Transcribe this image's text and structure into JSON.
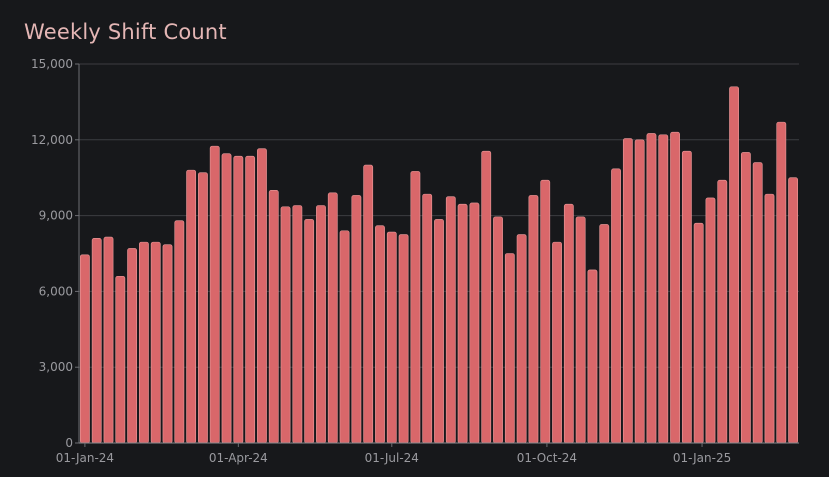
{
  "chart_data": {
    "type": "bar",
    "title": "Weekly Shift Count",
    "xlabel": "",
    "ylabel": "",
    "ylim": [
      0,
      15000
    ],
    "yticks": [
      0,
      3000,
      6000,
      9000,
      12000,
      15000
    ],
    "ytick_labels": [
      "0",
      "3,000",
      "6,000",
      "9,000",
      "12,000",
      "15,000"
    ],
    "xtick_labels": [
      "01-Jan-24",
      "01-Apr-24",
      "01-Jul-24",
      "01-Oct-24",
      "01-Jan-25"
    ],
    "xtick_dates": [
      "2024-01-01",
      "2024-04-01",
      "2024-07-01",
      "2024-10-01",
      "2025-01-01"
    ],
    "grid": true,
    "bar_color": "#d9676a",
    "series": [
      {
        "x": [
          "2024-01-01",
          "2024-01-08",
          "2024-01-15",
          "2024-01-22",
          "2024-01-29",
          "2024-02-05",
          "2024-02-12",
          "2024-02-19",
          "2024-02-26",
          "2024-03-04",
          "2024-03-11",
          "2024-03-18",
          "2024-03-25",
          "2024-04-01",
          "2024-04-08",
          "2024-04-15",
          "2024-04-22",
          "2024-04-29",
          "2024-05-06",
          "2024-05-13",
          "2024-05-20",
          "2024-05-27",
          "2024-06-03",
          "2024-06-10",
          "2024-06-17",
          "2024-06-24",
          "2024-07-01",
          "2024-07-08",
          "2024-07-15",
          "2024-07-22",
          "2024-07-29",
          "2024-08-05",
          "2024-08-12",
          "2024-08-19",
          "2024-08-26",
          "2024-09-02",
          "2024-09-09",
          "2024-09-16",
          "2024-09-23",
          "2024-09-30",
          "2024-10-07",
          "2024-10-14",
          "2024-10-21",
          "2024-10-28",
          "2024-11-04",
          "2024-11-11",
          "2024-11-18",
          "2024-11-25",
          "2024-12-02",
          "2024-12-09",
          "2024-12-16",
          "2024-12-23",
          "2024-12-30",
          "2025-01-06",
          "2025-01-13",
          "2025-01-20",
          "2025-01-27",
          "2025-02-03",
          "2025-02-10",
          "2025-02-17",
          "2025-02-24"
        ],
        "values": [
          7450,
          8100,
          8150,
          6600,
          7700,
          7950,
          7950,
          7850,
          8800,
          10800,
          10700,
          11750,
          11450,
          11350,
          11350,
          11650,
          10000,
          9350,
          9400,
          8850,
          9400,
          9900,
          8400,
          9800,
          11000,
          8600,
          8350,
          8250,
          10750,
          9850,
          8850,
          9750,
          9450,
          9500,
          11550,
          8950,
          7500,
          8250,
          9800,
          10400,
          7950,
          9450,
          8950,
          6850,
          8650,
          10850,
          12050,
          12000,
          12250,
          12200,
          12300,
          11550,
          8700,
          9700,
          10400,
          14100,
          11500,
          11100,
          9850,
          12700,
          10500
        ]
      }
    ]
  }
}
